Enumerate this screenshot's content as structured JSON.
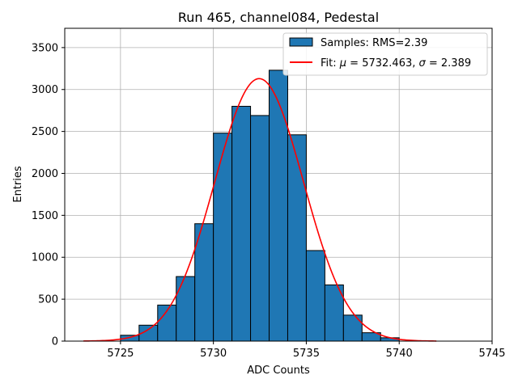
{
  "chart_data": {
    "type": "bar",
    "title": "Run 465, channel084, Pedestal",
    "xlabel": "ADC Counts",
    "ylabel": "Entries",
    "xlim": [
      5722,
      5745
    ],
    "ylim": [
      0,
      3730
    ],
    "xticks": [
      5725,
      5730,
      5735,
      5740,
      5745
    ],
    "yticks": [
      0,
      500,
      1000,
      1500,
      2000,
      2500,
      3000,
      3500
    ],
    "grid": true,
    "legend_position": "top-right",
    "histogram": {
      "name": "Samples: RMS=2.39",
      "color": "#1f77b4",
      "edge_color": "#000000",
      "bins": [
        {
          "start": 5725,
          "end": 5726,
          "count": 70
        },
        {
          "start": 5726,
          "end": 5727,
          "count": 190
        },
        {
          "start": 5727,
          "end": 5728,
          "count": 430
        },
        {
          "start": 5728,
          "end": 5729,
          "count": 770
        },
        {
          "start": 5729,
          "end": 5730,
          "count": 1400
        },
        {
          "start": 5730,
          "end": 5731,
          "count": 2480
        },
        {
          "start": 5731,
          "end": 5732,
          "count": 2800
        },
        {
          "start": 5732,
          "end": 5733,
          "count": 2690
        },
        {
          "start": 5733,
          "end": 5734,
          "count": 3230
        },
        {
          "start": 5734,
          "end": 5735,
          "count": 2460
        },
        {
          "start": 5735,
          "end": 5736,
          "count": 1080
        },
        {
          "start": 5736,
          "end": 5737,
          "count": 670
        },
        {
          "start": 5737,
          "end": 5738,
          "count": 310
        },
        {
          "start": 5738,
          "end": 5739,
          "count": 100
        },
        {
          "start": 5739,
          "end": 5740,
          "count": 40
        }
      ]
    },
    "fit": {
      "name_prefix": "Fit: ",
      "mu_symbol": "μ",
      "mu_text": " = 5732.463, ",
      "sigma_symbol": "σ",
      "sigma_text": " = 2.389",
      "color": "#ff0000",
      "mu": 5732.463,
      "sigma": 2.389,
      "amplitude": 3130,
      "x_range": [
        5723,
        5742
      ]
    }
  }
}
